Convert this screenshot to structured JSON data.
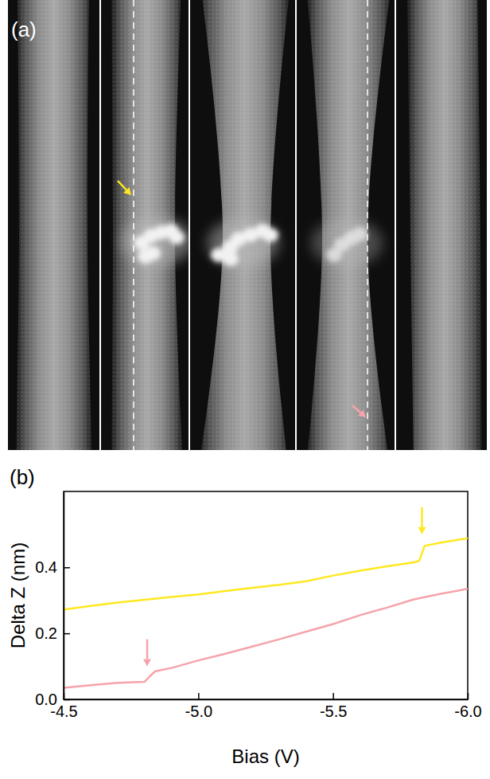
{
  "panel_a": {
    "label": "(a)"
  },
  "chart_data": {
    "label": "(b)",
    "type": "line",
    "x_label": "Bias (V)",
    "y_label": "Delta Z (nm)",
    "xlim": [
      -4.5,
      -6.0
    ],
    "xticks": [
      -4.5,
      {
        "value": -5,
        "label": "-5.0"
      },
      -5.5,
      {
        "value": -6,
        "label": "-6.0"
      }
    ],
    "ylim": [
      0,
      0.63
    ],
    "yticks": [
      {
        "value": 0,
        "label": "0.0"
      },
      0.2,
      0.4
    ],
    "series": [
      {
        "color": "#ffe81f",
        "x": [
          -4.5,
          -4.6,
          -4.7,
          -4.8,
          -4.9,
          -5.0,
          -5.1,
          -5.2,
          -5.3,
          -5.4,
          -5.5,
          -5.6,
          -5.7,
          -5.8,
          -5.82,
          -5.84,
          -5.9,
          -6.0
        ],
        "values": [
          0.272,
          0.283,
          0.293,
          0.302,
          0.31,
          0.318,
          0.328,
          0.338,
          0.347,
          0.358,
          0.375,
          0.39,
          0.403,
          0.415,
          0.42,
          0.465,
          0.475,
          0.488
        ]
      },
      {
        "color": "#f5a3aa",
        "x": [
          -4.5,
          -4.6,
          -4.7,
          -4.8,
          -4.82,
          -4.84,
          -4.9,
          -5.0,
          -5.1,
          -5.2,
          -5.3,
          -5.4,
          -5.5,
          -5.6,
          -5.7,
          -5.8,
          -5.9,
          -6.0
        ],
        "values": [
          0.035,
          0.043,
          0.05,
          0.053,
          0.07,
          0.085,
          0.095,
          0.118,
          0.138,
          0.16,
          0.182,
          0.205,
          0.228,
          0.255,
          0.278,
          0.303,
          0.32,
          0.335
        ]
      }
    ],
    "arrows": [
      {
        "x": -5.83,
        "y": 0.5,
        "color": "#ffe81f"
      },
      {
        "x": -4.81,
        "y": 0.1,
        "color": "#f5a3aa"
      }
    ]
  }
}
